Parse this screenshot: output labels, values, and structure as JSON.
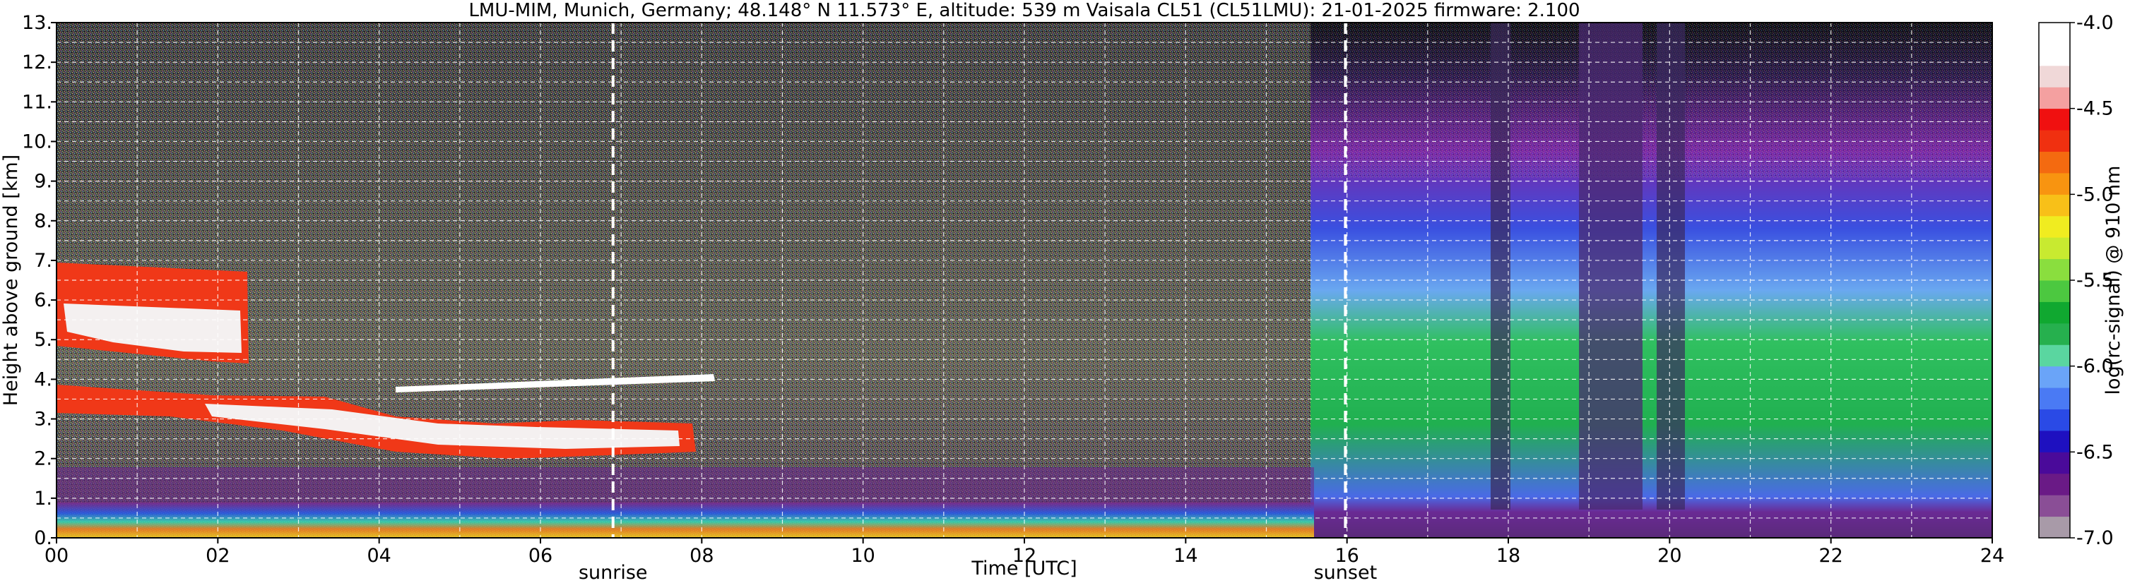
{
  "chart_data": {
    "type": "heatmap",
    "title": "LMU-MIM, Munich, Germany; 48.148° N 11.573° E, altitude: 539 m    Vaisala CL51 (CL51LMU): 21-01-2025    firmware: 2.100",
    "xlabel": "Time [UTC]",
    "ylabel": "Height above ground [km]",
    "xlim": [
      0,
      24
    ],
    "ylim": [
      0,
      13
    ],
    "x_ticks": [
      "00",
      "02",
      "04",
      "06",
      "08",
      "10",
      "12",
      "14",
      "16",
      "18",
      "20",
      "22",
      "24"
    ],
    "y_ticks": [
      "0.",
      "1.",
      "2.",
      "3.",
      "4.",
      "5.",
      "6.",
      "7.",
      "8.",
      "9.",
      "10.",
      "11.",
      "12.",
      "13."
    ],
    "grid": true,
    "annotations": [
      {
        "text": "sunrise",
        "x": 6.9
      },
      {
        "text": "sunset",
        "x": 15.98
      }
    ],
    "colorbar": {
      "label": "log(rc-signal) @ 910 nm",
      "range": [
        -7.0,
        -4.0
      ],
      "ticks": [
        "-4.0",
        "-4.5",
        "-5.0",
        "-5.5",
        "-6.0",
        "-6.5",
        "-7.0"
      ],
      "colors": [
        "#a89aa8",
        "#8a4e96",
        "#6a1a86",
        "#4a0a9a",
        "#1e10c0",
        "#2a4ae6",
        "#4a7af4",
        "#6aa4f8",
        "#5ad6a0",
        "#26b04e",
        "#10a830",
        "#4cc840",
        "#8ade3e",
        "#c8ea30",
        "#f0ec20",
        "#f8c018",
        "#f89410",
        "#f46a10",
        "#f03010",
        "#f01010",
        "#f4a0a0",
        "#f0d8d8",
        "#ffffff",
        "#ffffff"
      ]
    },
    "features": [
      {
        "name": "aerosol boundary layer",
        "start": 0,
        "end": 24,
        "top_km": 0.55
      },
      {
        "name": "cloud layer",
        "start": 0,
        "end": 2.4,
        "base_km": 3.9,
        "top_km": 6.4
      },
      {
        "name": "cloud layer",
        "start": 2.3,
        "end": 8.0,
        "base_km": 2.2,
        "top_km": 3.6
      },
      {
        "name": "thin cloud",
        "start": 4.7,
        "end": 8.1,
        "base_km": 3.8,
        "top_km": 4.1
      },
      {
        "name": "high clouds / precipitation",
        "start": 15.5,
        "end": 24,
        "base_km": 1.2,
        "top_km": 8.0
      }
    ]
  }
}
